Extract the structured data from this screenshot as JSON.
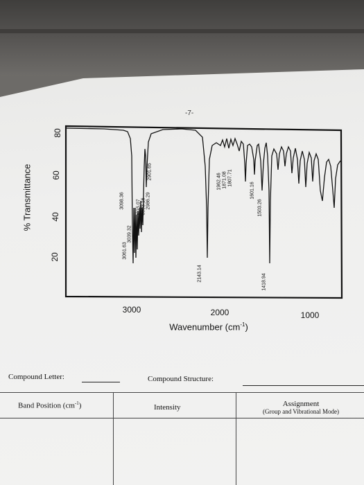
{
  "page": {
    "number": "-7-"
  },
  "spectrum": {
    "y_title": "% Transmittance",
    "x_title_main": "Wavenumber (cm",
    "x_title_sup": "-1",
    "x_title_end": ")",
    "y_ticks": [
      "80",
      "60",
      "40",
      "20"
    ],
    "x_ticks": [
      "3000",
      "2000",
      "1000"
    ],
    "peak_labels": [
      "3098.36",
      "3061.63",
      "3039.32",
      "3015.07",
      "3003.16",
      "2986.29",
      "2901.65",
      "2143.14",
      "1962.46",
      "1871.08",
      "1807.71",
      "1601.16",
      "1503.26",
      "1418.94"
    ]
  },
  "form": {
    "compound_letter_label": "Compound Letter:",
    "compound_structure_label": "Compound Structure:"
  },
  "table": {
    "col1_header": "Band Position (cm",
    "col1_sup": "-1",
    "col1_end": ")",
    "col2_header": "Intensity",
    "col3_header": "Assignment",
    "col3_sub": "(Group and Vibrational Mode)"
  }
}
